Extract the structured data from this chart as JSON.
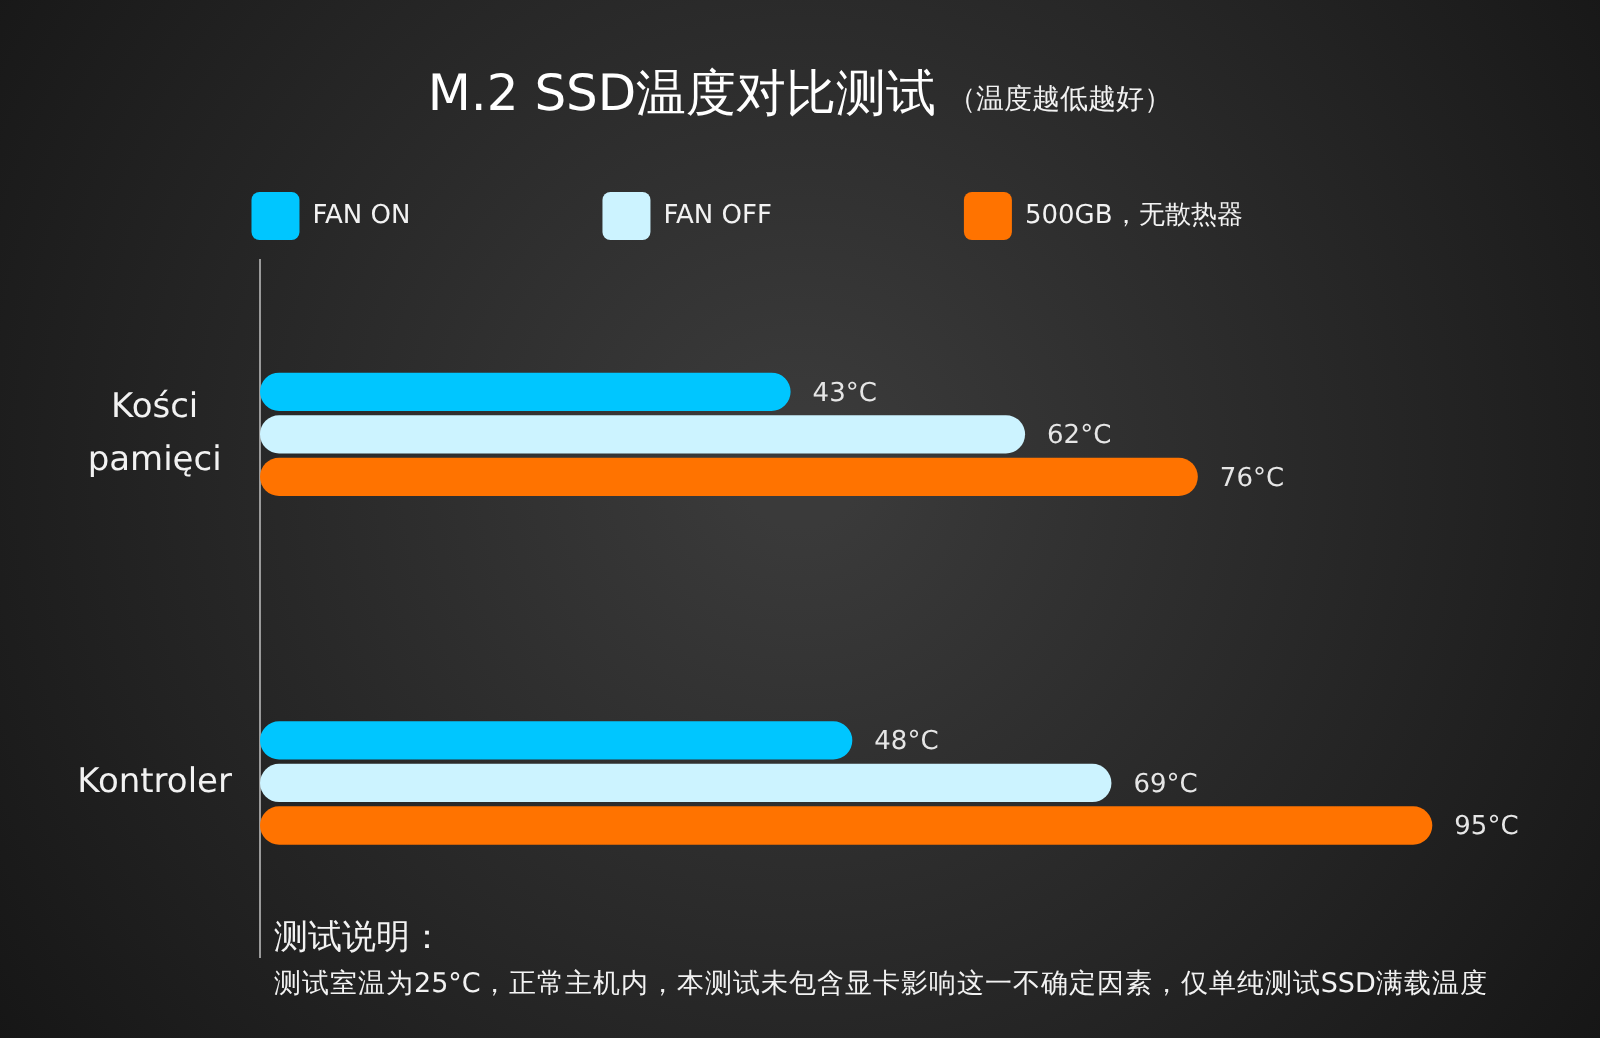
{
  "chart_data": {
    "type": "bar",
    "orientation": "horizontal",
    "title": "M.2 SSD温度对比测试",
    "subtitle": "（温度越低越好）",
    "categories": [
      "Kości pamięci",
      "Kontroler"
    ],
    "series": [
      {
        "name": "FAN ON",
        "color": "#00c6ff",
        "values": [
          43,
          48
        ],
        "value_labels": [
          "43°C",
          "48°C"
        ]
      },
      {
        "name": "FAN OFF",
        "color": "#ccf3ff",
        "values": [
          62,
          69
        ],
        "value_labels": [
          "62°C",
          "69°C"
        ]
      },
      {
        "name": "500GB，无散热器",
        "color": "#ff7300",
        "values": [
          76,
          95
        ],
        "value_labels": [
          "76°C",
          "95°C"
        ]
      }
    ],
    "legend": "top",
    "tick_labels": "y",
    "annotations": [
      "测试说明：",
      "测试室温为25°C，正常主机内，本测试未包含显卡影响这一不确定因素，仅单纯测试SSD满载温度"
    ]
  }
}
